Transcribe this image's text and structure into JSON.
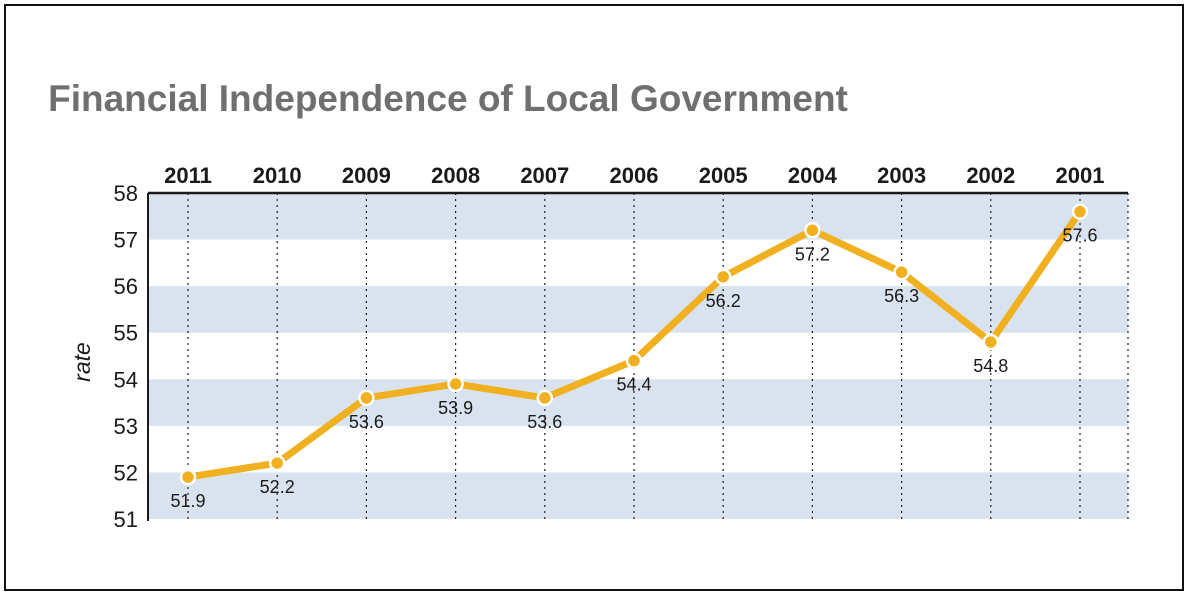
{
  "chart_data": {
    "type": "line",
    "title": "Financial Independence of Local Government",
    "xlabel": "",
    "ylabel": "rate",
    "categories": [
      "2011",
      "2010",
      "2009",
      "2008",
      "2007",
      "2006",
      "2005",
      "2004",
      "2003",
      "2002",
      "2001"
    ],
    "series": [
      {
        "name": "rate",
        "values": [
          51.9,
          52.2,
          53.6,
          53.9,
          53.6,
          54.4,
          56.2,
          57.2,
          56.3,
          54.8,
          57.6
        ],
        "labels": [
          "51.9",
          "52.2",
          "53.6",
          "53.9",
          "53.6",
          "54.4",
          "56.2",
          "57.2",
          "56.3",
          "54.8",
          "57.6"
        ]
      }
    ],
    "ylim": [
      51,
      58
    ],
    "yticks": [
      "51",
      "52",
      "53",
      "54",
      "55",
      "56",
      "57",
      "58"
    ],
    "grid": "alternating horizontal bands, dotted vertical lines",
    "x_axis_position": "top",
    "colors": {
      "line": "#f0b020",
      "band": "#d9e3ef",
      "marker_fill": "#f0b020",
      "marker_stroke": "#ffffff"
    }
  }
}
